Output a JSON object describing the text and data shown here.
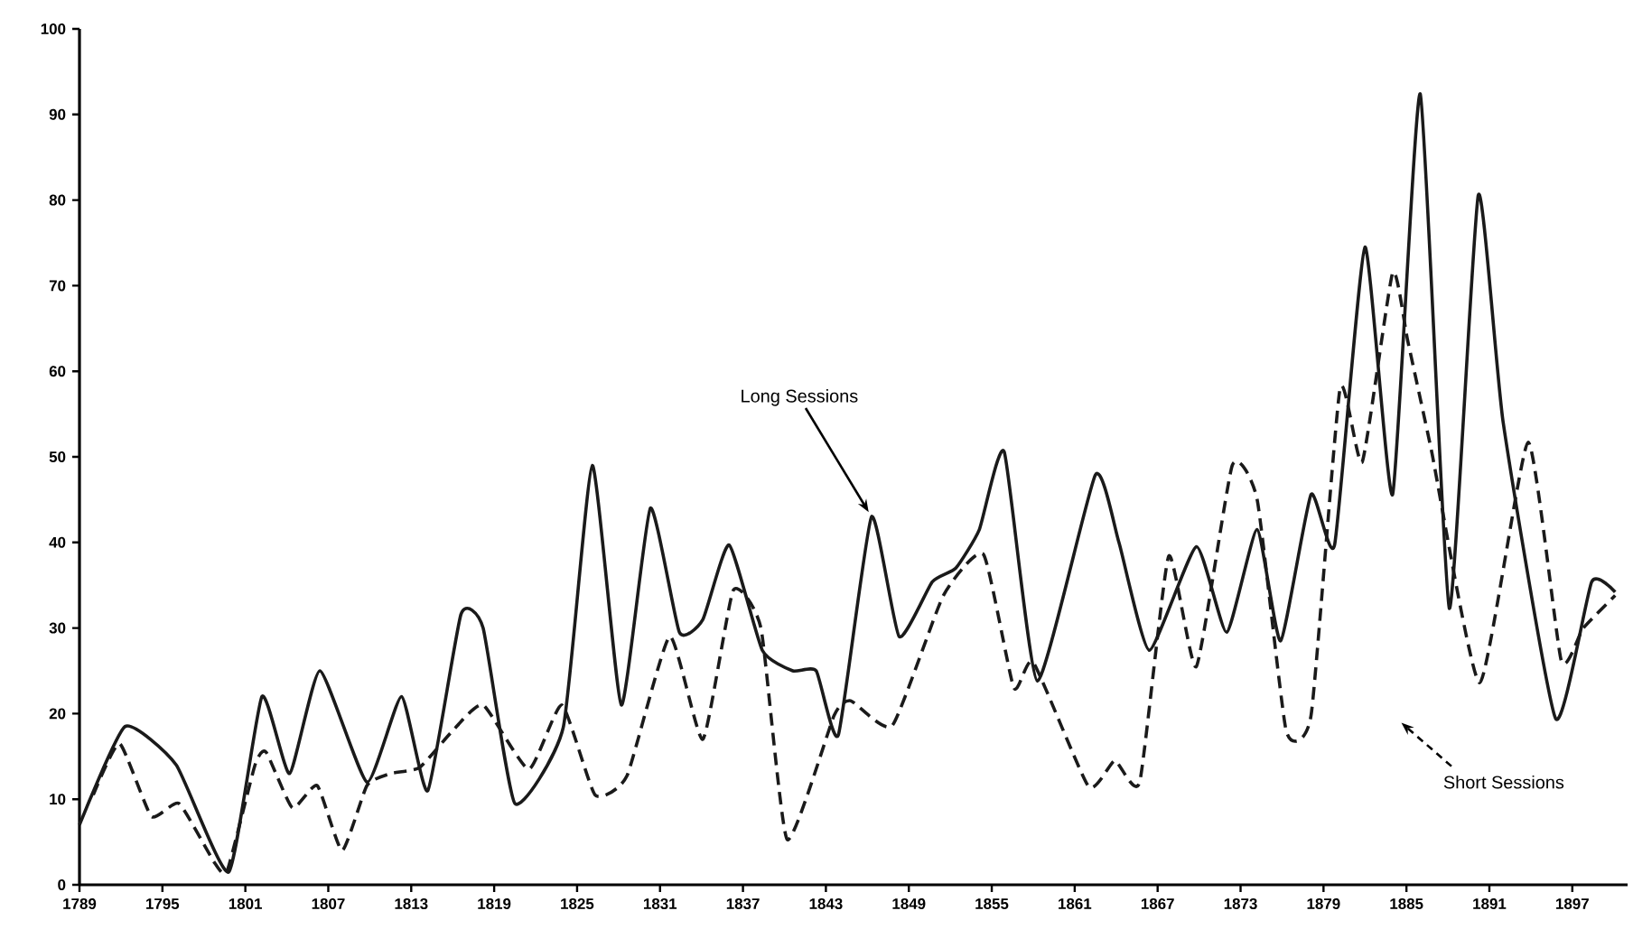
{
  "chart_data": {
    "type": "line",
    "xlim": [
      1789,
      1901
    ],
    "ylim": [
      0,
      100
    ],
    "xticks": [
      1789,
      1795,
      1801,
      1807,
      1813,
      1819,
      1825,
      1831,
      1837,
      1843,
      1849,
      1855,
      1861,
      1867,
      1873,
      1879,
      1885,
      1891,
      1897
    ],
    "yticks": [
      0,
      10,
      20,
      30,
      40,
      50,
      60,
      70,
      80,
      90,
      100
    ],
    "legend": false,
    "marker": "none",
    "grid": false,
    "series": [
      {
        "color": "#1a1a1a",
        "line_style": "solid",
        "x": [
          1789,
          1792.3,
          1796,
          1799.8,
          1802.2,
          1804.2,
          1806.4,
          1809.8,
          1812.3,
          1814.2,
          1816.6,
          1818.2,
          1820.5,
          1824,
          1826.1,
          1828.2,
          1830.3,
          1832.4,
          1834.1,
          1836,
          1838.4,
          1840.6,
          1842.3,
          1843.9,
          1846.3,
          1848.3,
          1850.7,
          1852.4,
          1854.1,
          1855.9,
          1858.3,
          1862.5,
          1864.2,
          1866.4,
          1869.8,
          1872,
          1874.2,
          1875.9,
          1878.1,
          1879.8,
          1882,
          1884,
          1886,
          1888.1,
          1890.2,
          1892,
          1895.8,
          1898.4,
          1900.1
        ],
        "values": [
          7,
          18.5,
          14,
          1.5,
          22,
          13,
          25,
          12,
          22,
          11,
          31.6,
          30,
          9.5,
          18.4,
          49,
          21,
          44,
          29.5,
          31,
          39.7,
          27.4,
          25,
          25,
          17.5,
          43,
          29,
          35.4,
          37,
          41.5,
          50.6,
          23.8,
          47.9,
          40,
          27.4,
          39.5,
          29.5,
          41.5,
          28.5,
          45.6,
          39.7,
          74.5,
          45.6,
          92.4,
          32.3,
          80.6,
          54,
          19.4,
          35.4,
          34.2
        ]
      },
      {
        "color": "#1a1a1a",
        "line_style": "dashed",
        "x": [
          1790,
          1791.9,
          1794.2,
          1796.2,
          1798.8,
          1799.7,
          1801.7,
          1802.5,
          1804.4,
          1806.2,
          1808,
          1809.8,
          1811.5,
          1813.6,
          1816,
          1818.2,
          1821.5,
          1823.9,
          1826.3,
          1828.6,
          1831.7,
          1834.1,
          1836.3,
          1838.3,
          1840.2,
          1843.6,
          1844.8,
          1847.8,
          1851.5,
          1854.4,
          1856.6,
          1858,
          1862,
          1863.9,
          1865.7,
          1867.8,
          1869.8,
          1872.4,
          1874.2,
          1876.3,
          1878.1,
          1880.2,
          1881.8,
          1884,
          1885.1,
          1886.8,
          1890.3,
          1893.8,
          1896.2,
          1897.8,
          1900.1
        ],
        "values": [
          10.5,
          16.5,
          8,
          9.5,
          2.5,
          1.7,
          14,
          15.5,
          9,
          11.6,
          4,
          11.6,
          13,
          13.7,
          18,
          21,
          13.5,
          21,
          10.5,
          12.7,
          29,
          17,
          34.4,
          30,
          5.3,
          19.8,
          21.5,
          18.6,
          33.8,
          38.6,
          23,
          26,
          11.5,
          14.5,
          12,
          38.4,
          25.5,
          49,
          45,
          18,
          19.8,
          58,
          49.4,
          71.5,
          63.5,
          50.8,
          23.6,
          51.7,
          26.2,
          30,
          33.8
        ]
      }
    ],
    "annotations": [
      {
        "text": "Long Sessions",
        "x": 1846.3,
        "y": 43
      },
      "Short Sessions"
    ]
  }
}
